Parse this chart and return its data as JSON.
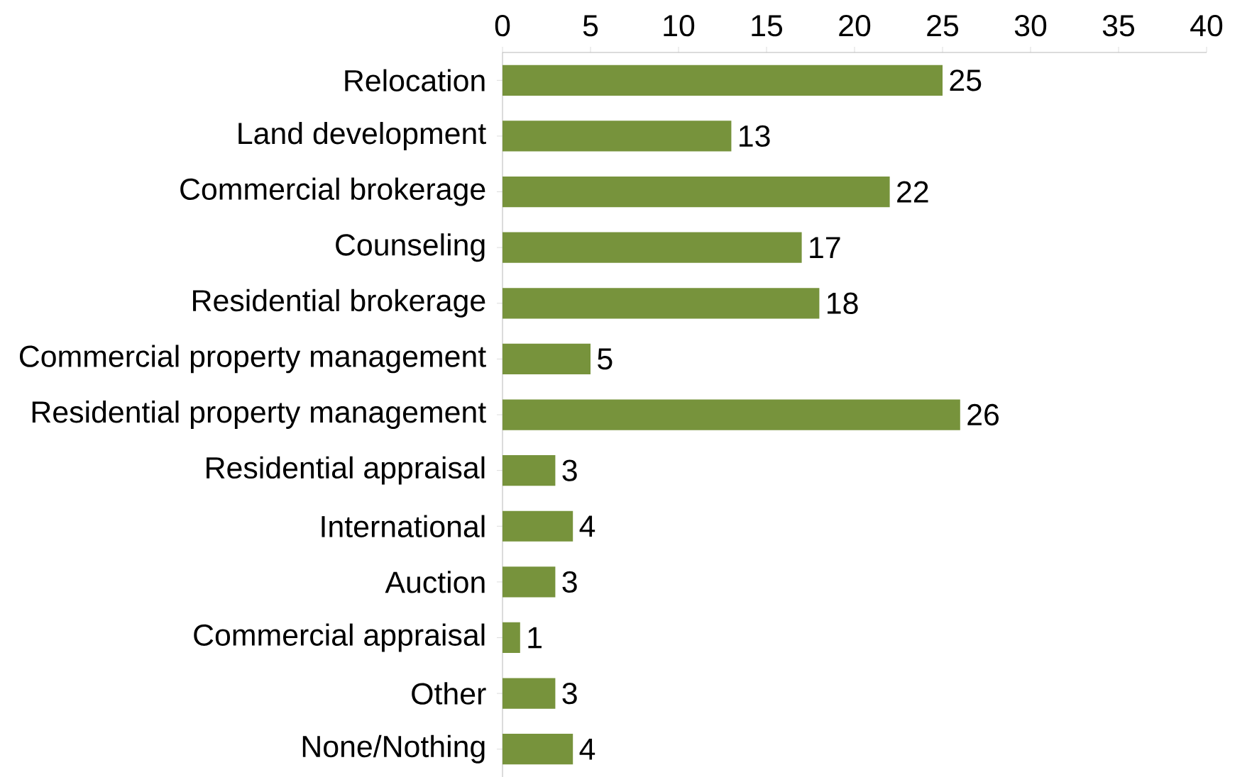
{
  "chart_data": {
    "type": "bar",
    "orientation": "horizontal",
    "categories": [
      "Relocation",
      "Land development",
      "Commercial brokerage",
      "Counseling",
      "Residential brokerage",
      "Commercial property management",
      "Residential property management",
      "Residential appraisal",
      "International",
      "Auction",
      "Commercial appraisal",
      "Other",
      "None/Nothing"
    ],
    "values": [
      25,
      13,
      22,
      17,
      18,
      5,
      26,
      3,
      4,
      3,
      1,
      3,
      4
    ],
    "color": "#77933c",
    "xlim": [
      0,
      40
    ],
    "xticks": [
      0,
      5,
      10,
      15,
      20,
      25,
      30,
      35,
      40
    ],
    "data_labels": true
  }
}
